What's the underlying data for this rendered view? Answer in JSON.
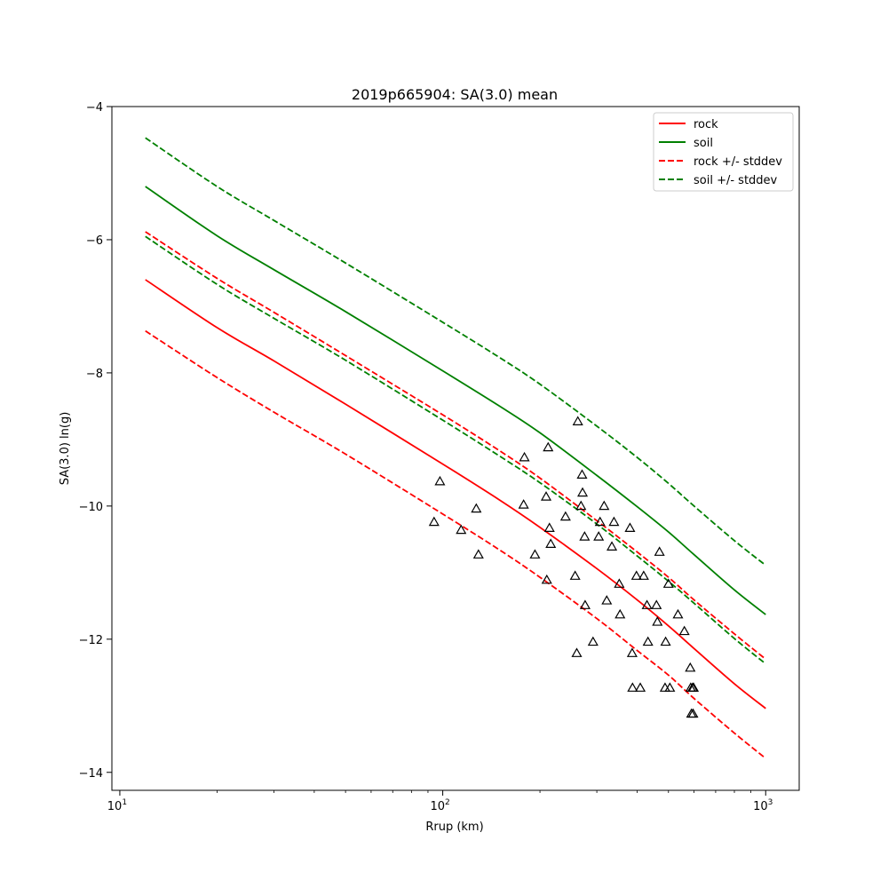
{
  "chart_data": {
    "type": "line",
    "title": "2019p665904: SA(3.0) mean",
    "xlabel": "Rrup (km)",
    "ylabel": "SA(3.0) ln(g)",
    "xscale": "log",
    "xlim": [
      9.45,
      1270
    ],
    "ylim": [
      -14.27,
      -4.0
    ],
    "x_ticks": [
      {
        "value": 10,
        "base": "10",
        "exp": "1"
      },
      {
        "value": 100,
        "base": "10",
        "exp": "2"
      },
      {
        "value": 1000,
        "base": "10",
        "exp": "3"
      }
    ],
    "y_ticks": [
      {
        "value": -4,
        "label": "−4"
      },
      {
        "value": -6,
        "label": "−6"
      },
      {
        "value": -8,
        "label": "−8"
      },
      {
        "value": -10,
        "label": "−10"
      },
      {
        "value": -12,
        "label": "−12"
      },
      {
        "value": -14,
        "label": "−14"
      }
    ],
    "grid": false,
    "legend_position": "top-right",
    "series": [
      {
        "name": "rock",
        "color": "#ff0000",
        "dash": false,
        "x": [
          12,
          20,
          30,
          50,
          100,
          150,
          200,
          300,
          400,
          500,
          600,
          800,
          1000
        ],
        "values": [
          -6.6,
          -7.32,
          -7.82,
          -8.47,
          -9.37,
          -9.91,
          -10.32,
          -10.94,
          -11.41,
          -11.8,
          -12.14,
          -12.67,
          -13.04
        ]
      },
      {
        "name": "soil",
        "color": "#008000",
        "dash": false,
        "x": [
          12,
          20,
          30,
          50,
          100,
          150,
          200,
          300,
          400,
          500,
          600,
          800,
          1000
        ],
        "values": [
          -5.2,
          -5.94,
          -6.45,
          -7.08,
          -7.97,
          -8.5,
          -8.9,
          -9.54,
          -10.01,
          -10.39,
          -10.73,
          -11.26,
          -11.63
        ]
      },
      {
        "name": "rock +/- stddev",
        "color": "#ff0000",
        "dash": true,
        "x": [
          12,
          20,
          30,
          50,
          100,
          150,
          200,
          300,
          400,
          500,
          600,
          800,
          1000
        ],
        "values": [
          -5.88,
          -6.58,
          -7.09,
          -7.74,
          -8.63,
          -9.17,
          -9.58,
          -10.22,
          -10.69,
          -11.07,
          -11.41,
          -11.92,
          -12.3
        ]
      },
      {
        "color": "#ff0000",
        "dash": true,
        "x": [
          12,
          20,
          30,
          50,
          100,
          150,
          200,
          300,
          400,
          500,
          600,
          800,
          1000
        ],
        "values": [
          -7.37,
          -8.07,
          -8.59,
          -9.22,
          -10.12,
          -10.66,
          -11.07,
          -11.69,
          -12.17,
          -12.54,
          -12.89,
          -13.41,
          -13.79
        ]
      },
      {
        "name": "soil +/- stddev",
        "color": "#008000",
        "dash": true,
        "x": [
          12,
          20,
          30,
          50,
          100,
          150,
          200,
          300,
          400,
          500,
          600,
          800,
          1000
        ],
        "values": [
          -4.47,
          -5.2,
          -5.71,
          -6.35,
          -7.24,
          -7.77,
          -8.17,
          -8.8,
          -9.27,
          -9.66,
          -10.0,
          -10.52,
          -10.89
        ]
      },
      {
        "color": "#008000",
        "dash": true,
        "x": [
          12,
          20,
          30,
          50,
          100,
          150,
          200,
          300,
          400,
          500,
          600,
          800,
          1000
        ],
        "values": [
          -5.95,
          -6.67,
          -7.18,
          -7.81,
          -8.71,
          -9.25,
          -9.65,
          -10.27,
          -10.75,
          -11.13,
          -11.46,
          -11.99,
          -12.37
        ]
      }
    ],
    "scatter": {
      "marker": "triangle",
      "color": "#000000",
      "points": [
        {
          "x": 94,
          "y": -10.24
        },
        {
          "x": 98,
          "y": -9.63
        },
        {
          "x": 114,
          "y": -10.36
        },
        {
          "x": 127,
          "y": -10.04
        },
        {
          "x": 129,
          "y": -10.73
        },
        {
          "x": 178,
          "y": -9.98
        },
        {
          "x": 179,
          "y": -9.27
        },
        {
          "x": 193,
          "y": -10.73
        },
        {
          "x": 209,
          "y": -9.86
        },
        {
          "x": 210,
          "y": -11.11
        },
        {
          "x": 212,
          "y": -9.12
        },
        {
          "x": 214,
          "y": -10.33
        },
        {
          "x": 216,
          "y": -10.57
        },
        {
          "x": 240,
          "y": -10.16
        },
        {
          "x": 257,
          "y": -11.05
        },
        {
          "x": 260,
          "y": -12.21
        },
        {
          "x": 262,
          "y": -8.73
        },
        {
          "x": 268,
          "y": -10.0
        },
        {
          "x": 270,
          "y": -9.53
        },
        {
          "x": 271,
          "y": -9.8
        },
        {
          "x": 275,
          "y": -10.46
        },
        {
          "x": 276,
          "y": -11.49
        },
        {
          "x": 292,
          "y": -12.04
        },
        {
          "x": 304,
          "y": -10.46
        },
        {
          "x": 307,
          "y": -10.24
        },
        {
          "x": 316,
          "y": -10.0
        },
        {
          "x": 322,
          "y": -11.42
        },
        {
          "x": 334,
          "y": -10.61
        },
        {
          "x": 339,
          "y": -10.24
        },
        {
          "x": 352,
          "y": -11.17
        },
        {
          "x": 354,
          "y": -11.63
        },
        {
          "x": 380,
          "y": -10.33
        },
        {
          "x": 386,
          "y": -12.21
        },
        {
          "x": 387,
          "y": -12.73
        },
        {
          "x": 398,
          "y": -11.05
        },
        {
          "x": 409,
          "y": -12.73
        },
        {
          "x": 419,
          "y": -11.05
        },
        {
          "x": 429,
          "y": -11.49
        },
        {
          "x": 432,
          "y": -12.04
        },
        {
          "x": 459,
          "y": -11.49
        },
        {
          "x": 462,
          "y": -11.74
        },
        {
          "x": 469,
          "y": -10.69
        },
        {
          "x": 488,
          "y": -12.73
        },
        {
          "x": 490,
          "y": -12.04
        },
        {
          "x": 500,
          "y": -11.17
        },
        {
          "x": 505,
          "y": -12.73
        },
        {
          "x": 535,
          "y": -11.63
        },
        {
          "x": 560,
          "y": -11.88
        },
        {
          "x": 584,
          "y": -12.43
        },
        {
          "x": 586,
          "y": -12.73
        },
        {
          "x": 589,
          "y": -13.12
        },
        {
          "x": 594,
          "y": -12.73
        },
        {
          "x": 596,
          "y": -13.12
        },
        {
          "x": 598,
          "y": -12.73
        }
      ]
    }
  }
}
